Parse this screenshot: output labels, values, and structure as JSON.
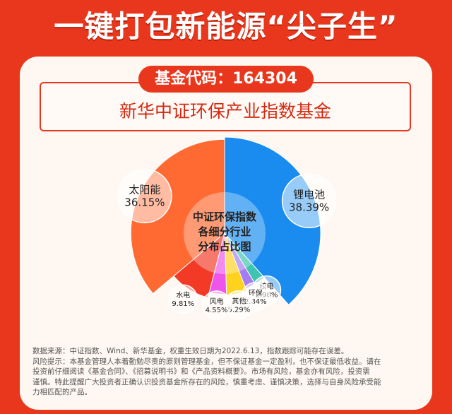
{
  "headline": "一键打包新能源“尖子生”",
  "fund_code": "基金代码：164304",
  "fund_name": "新华中证环保产业指数基金",
  "chart_data": {
    "type": "pie",
    "title": "中证环保指数各细分行业分布占比图",
    "title_lines": [
      "中证环保指数",
      "各细分行业",
      "分布占比图"
    ],
    "unit": "%",
    "slices": [
      {
        "name": "锂电池",
        "value": 38.39,
        "label": "38.39%",
        "color": "#1a8cf0"
      },
      {
        "name": "核电",
        "value": 2.98,
        "label": "2.98%",
        "color": "#3ec4b0"
      },
      {
        "name": "环保",
        "value": 2.84,
        "label": "2.84%",
        "color": "#a57cf2"
      },
      {
        "name": "其他",
        "value": 5.29,
        "label": "5.29%",
        "color": "#ffd21e"
      },
      {
        "name": "风电",
        "value": 4.55,
        "label": "4.55%",
        "color": "#ee55ea"
      },
      {
        "name": "水电",
        "value": 9.81,
        "label": "9.81%",
        "color": "#f23a27"
      },
      {
        "name": "太阳能",
        "value": 36.15,
        "label": "36.15%",
        "color": "#ff6a33"
      }
    ]
  },
  "footnote": {
    "source": "数据来源：中证指数、Wind、新华基金，权重生效日期为2022.6.13，指数跟踪可能存在误差。",
    "risk_lines": [
      "风险提示：本基金管理人本着勤勉尽责的原则管理基金，但不保证基金一定盈利，也不保证最低收益。请在",
      "投资前仔细阅读《基金合同》、《招募说明书》和《产品资料概要》。市场有风险，基金亦有风险，投资需",
      "谨慎。特此提醒广大投资者正确认识投资基金所存在的风险，慎重考虑、谨慎决策，选择与自身风险承受能",
      "力相匹配的产品。"
    ]
  }
}
